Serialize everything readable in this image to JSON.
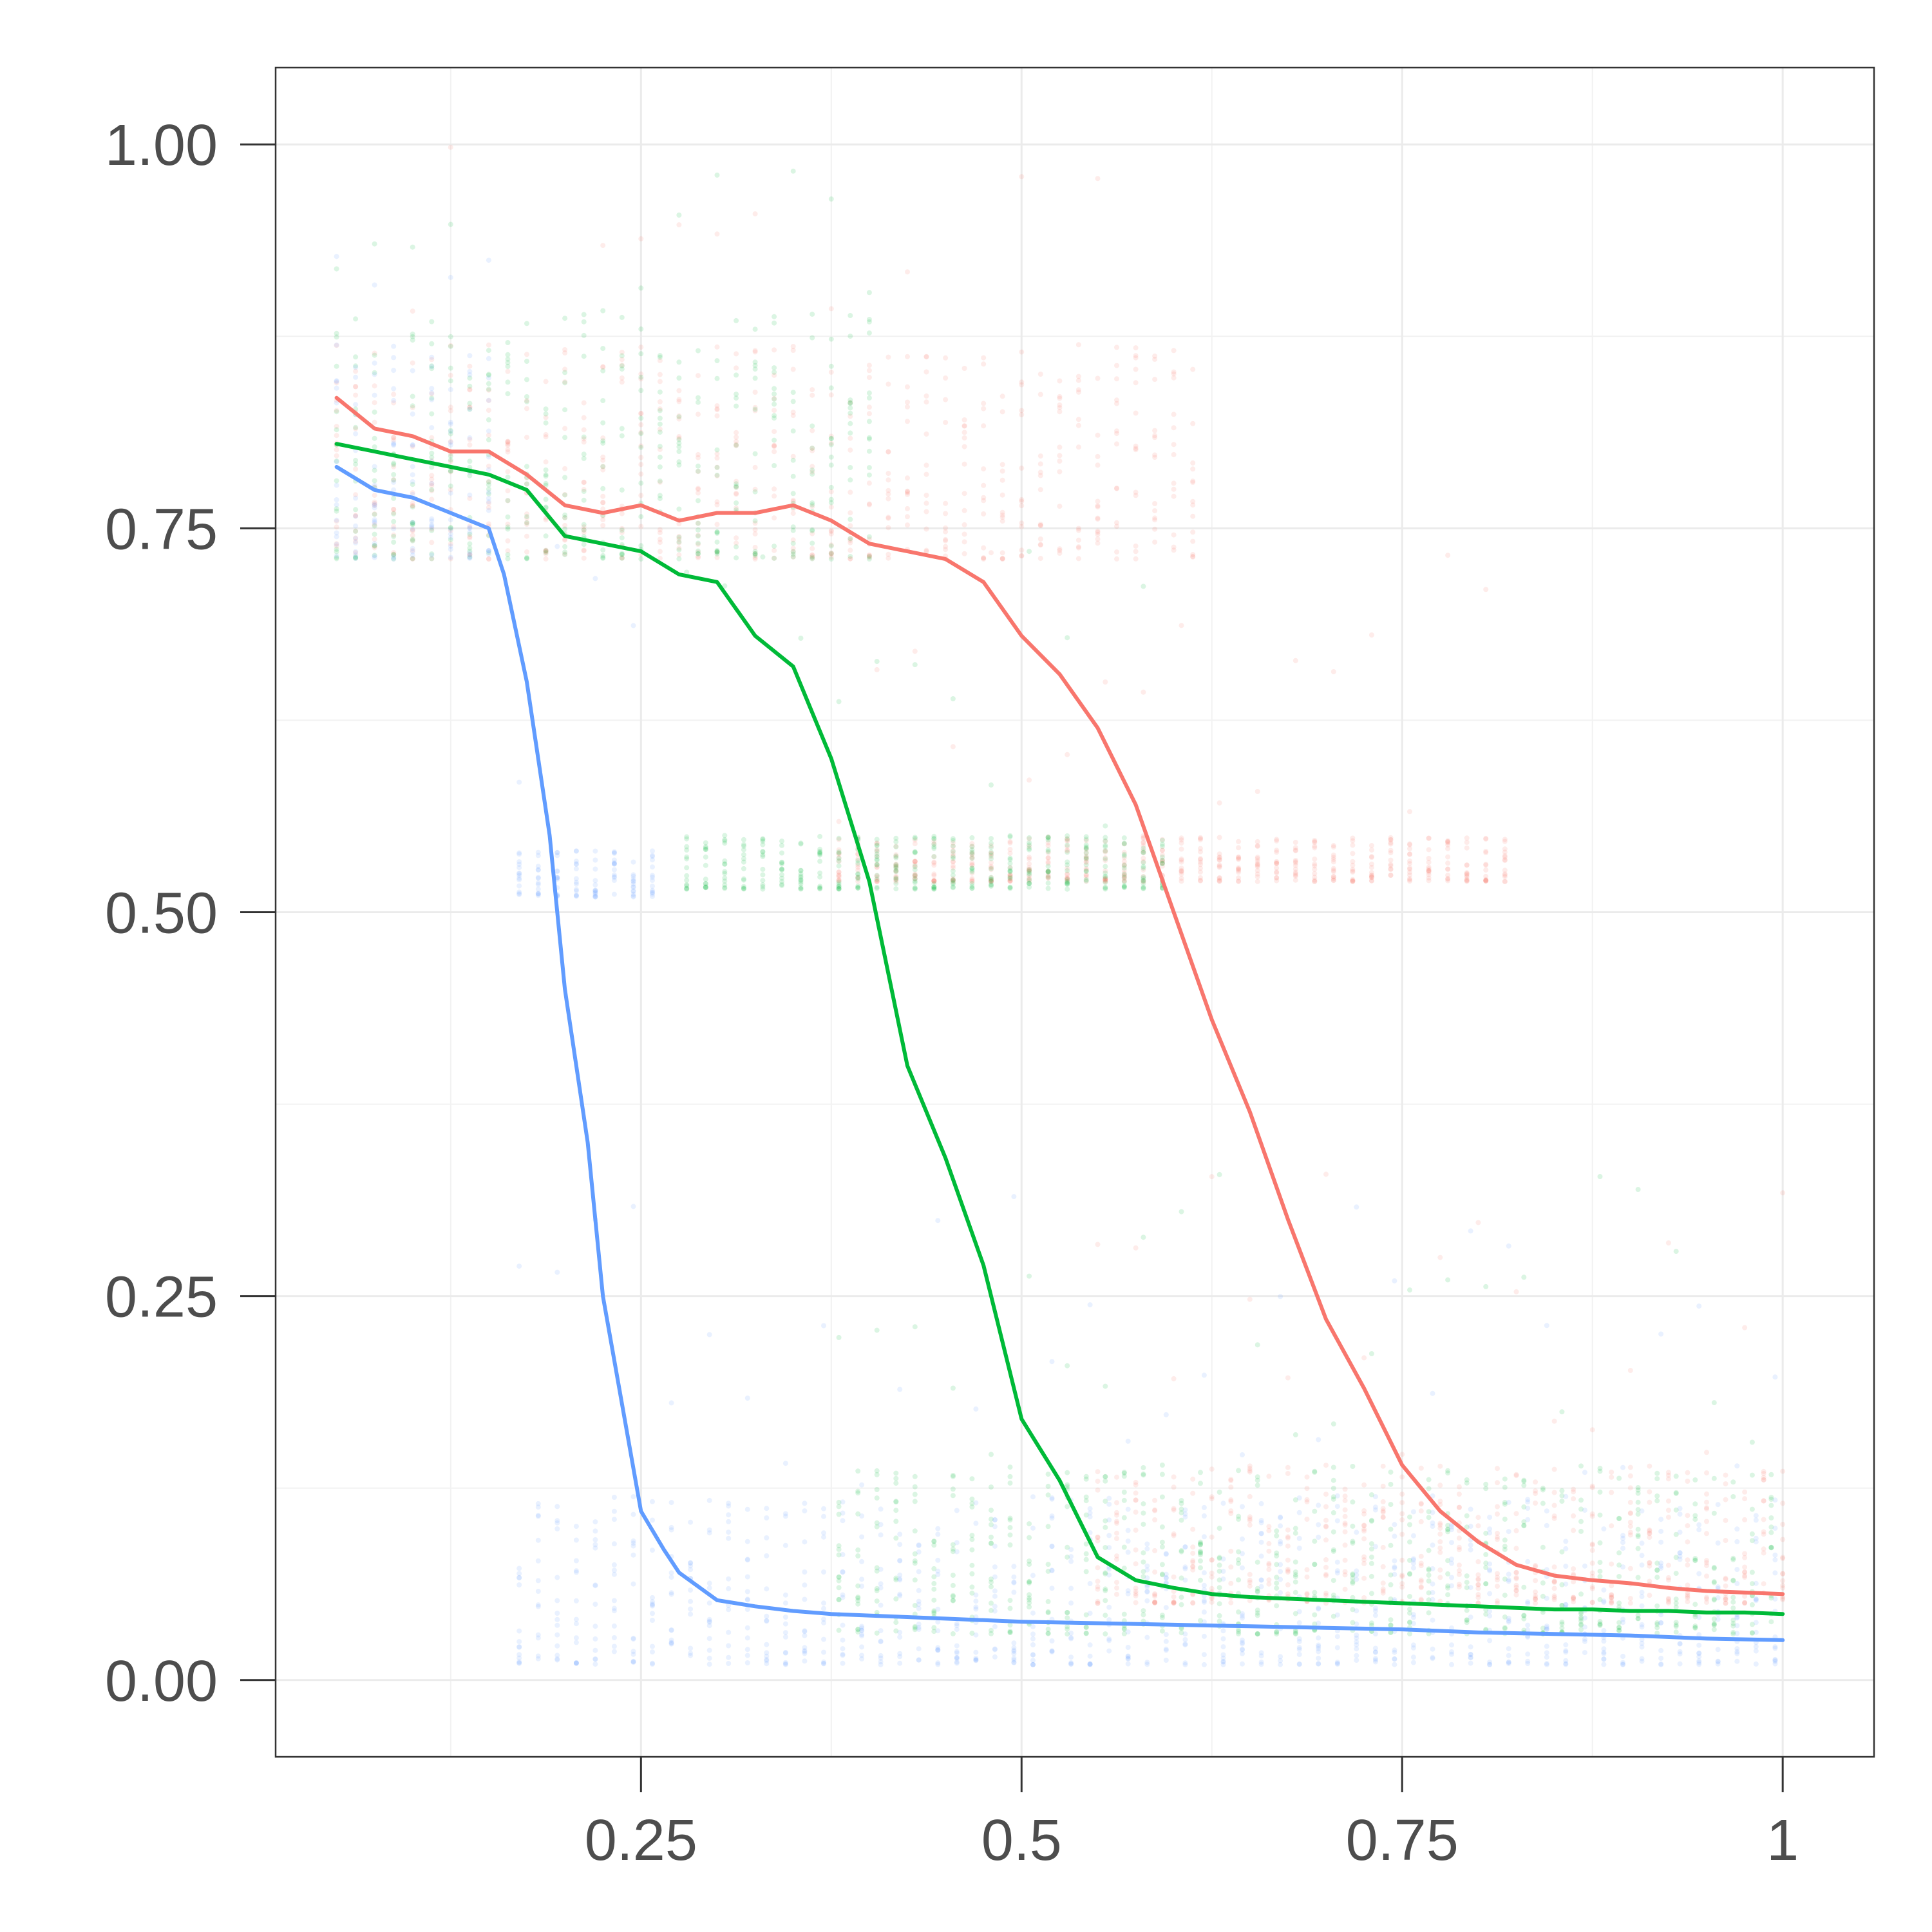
{
  "chart_data": {
    "type": "line",
    "title": "",
    "xlabel": "",
    "ylabel": "",
    "xlim": [
      0.01,
      1.06
    ],
    "ylim": [
      -0.05,
      1.05
    ],
    "x_ticks": [
      {
        "value": 0.25,
        "label": "0.25"
      },
      {
        "value": 0.5,
        "label": "0.5"
      },
      {
        "value": 0.75,
        "label": "0.75"
      },
      {
        "value": 1.0,
        "label": "1"
      }
    ],
    "y_ticks": [
      {
        "value": 0.0,
        "label": "0.00"
      },
      {
        "value": 0.25,
        "label": "0.25"
      },
      {
        "value": 0.5,
        "label": "0.50"
      },
      {
        "value": 0.75,
        "label": "0.75"
      },
      {
        "value": 1.0,
        "label": "1.00"
      }
    ],
    "grid": true,
    "legend": "none",
    "series": [
      {
        "color": "#F8766D",
        "x": [
          0.05,
          0.075,
          0.1,
          0.125,
          0.15,
          0.175,
          0.2,
          0.225,
          0.25,
          0.275,
          0.3,
          0.325,
          0.35,
          0.375,
          0.4,
          0.425,
          0.45,
          0.475,
          0.5,
          0.525,
          0.55,
          0.575,
          0.6,
          0.625,
          0.65,
          0.675,
          0.7,
          0.725,
          0.75,
          0.775,
          0.8,
          0.825,
          0.85,
          0.875,
          0.9,
          0.925,
          0.95,
          0.975,
          1.0
        ],
        "values": [
          0.835,
          0.815,
          0.81,
          0.8,
          0.8,
          0.785,
          0.765,
          0.76,
          0.765,
          0.755,
          0.76,
          0.76,
          0.765,
          0.755,
          0.74,
          0.735,
          0.73,
          0.715,
          0.68,
          0.655,
          0.62,
          0.57,
          0.5,
          0.43,
          0.37,
          0.3,
          0.235,
          0.19,
          0.14,
          0.11,
          0.09,
          0.075,
          0.068,
          0.065,
          0.063,
          0.06,
          0.058,
          0.057,
          0.056
        ]
      },
      {
        "color": "#00BA38",
        "x": [
          0.05,
          0.075,
          0.1,
          0.125,
          0.15,
          0.175,
          0.2,
          0.225,
          0.25,
          0.275,
          0.3,
          0.325,
          0.35,
          0.375,
          0.4,
          0.425,
          0.45,
          0.475,
          0.5,
          0.525,
          0.55,
          0.575,
          0.6,
          0.625,
          0.65,
          0.675,
          0.7,
          0.725,
          0.75,
          0.775,
          0.8,
          0.825,
          0.85,
          0.875,
          0.9,
          0.925,
          0.95,
          0.975,
          1.0
        ],
        "values": [
          0.805,
          0.8,
          0.795,
          0.79,
          0.785,
          0.775,
          0.745,
          0.74,
          0.735,
          0.72,
          0.715,
          0.68,
          0.66,
          0.6,
          0.52,
          0.4,
          0.34,
          0.27,
          0.17,
          0.13,
          0.08,
          0.065,
          0.06,
          0.056,
          0.054,
          0.053,
          0.052,
          0.051,
          0.05,
          0.049,
          0.048,
          0.047,
          0.046,
          0.046,
          0.045,
          0.045,
          0.044,
          0.044,
          0.043
        ]
      },
      {
        "color": "#619CFF",
        "x": [
          0.05,
          0.075,
          0.1,
          0.125,
          0.15,
          0.16,
          0.175,
          0.19,
          0.2,
          0.215,
          0.225,
          0.25,
          0.265,
          0.275,
          0.3,
          0.325,
          0.35,
          0.375,
          0.4,
          0.425,
          0.45,
          0.475,
          0.5,
          0.55,
          0.6,
          0.65,
          0.7,
          0.75,
          0.8,
          0.85,
          0.9,
          0.95,
          1.0
        ],
        "values": [
          0.79,
          0.775,
          0.77,
          0.76,
          0.75,
          0.72,
          0.65,
          0.55,
          0.45,
          0.35,
          0.25,
          0.11,
          0.085,
          0.07,
          0.052,
          0.048,
          0.045,
          0.043,
          0.042,
          0.041,
          0.04,
          0.039,
          0.038,
          0.037,
          0.036,
          0.035,
          0.034,
          0.033,
          0.031,
          0.03,
          0.029,
          0.027,
          0.026
        ]
      }
    ],
    "scatter_bands": [
      {
        "color": "#F8766D",
        "x_min": 0.05,
        "x_max": 0.83,
        "clusters": [
          {
            "y_min": 0.73,
            "y_max": 0.87,
            "x_from": 0.05,
            "x_to": 0.62
          },
          {
            "y_min": 0.52,
            "y_max": 0.55,
            "x_from": 0.38,
            "x_to": 0.82
          },
          {
            "y_min": 0.05,
            "y_max": 0.14,
            "x_from": 0.55,
            "x_to": 1.0
          }
        ]
      },
      {
        "color": "#00BA38",
        "x_min": 0.05,
        "x_max": 1.0,
        "clusters": [
          {
            "y_min": 0.73,
            "y_max": 0.89,
            "x_from": 0.05,
            "x_to": 0.4
          },
          {
            "y_min": 0.515,
            "y_max": 0.55,
            "x_from": 0.28,
            "x_to": 0.6
          },
          {
            "y_min": 0.03,
            "y_max": 0.14,
            "x_from": 0.38,
            "x_to": 1.0
          }
        ]
      },
      {
        "color": "#619CFF",
        "x_min": 0.05,
        "x_max": 1.0,
        "clusters": [
          {
            "y_min": 0.73,
            "y_max": 0.87,
            "x_from": 0.05,
            "x_to": 0.16
          },
          {
            "y_min": 0.51,
            "y_max": 0.54,
            "x_from": 0.17,
            "x_to": 0.26
          },
          {
            "y_min": 0.01,
            "y_max": 0.12,
            "x_from": 0.17,
            "x_to": 1.0
          }
        ]
      }
    ]
  }
}
